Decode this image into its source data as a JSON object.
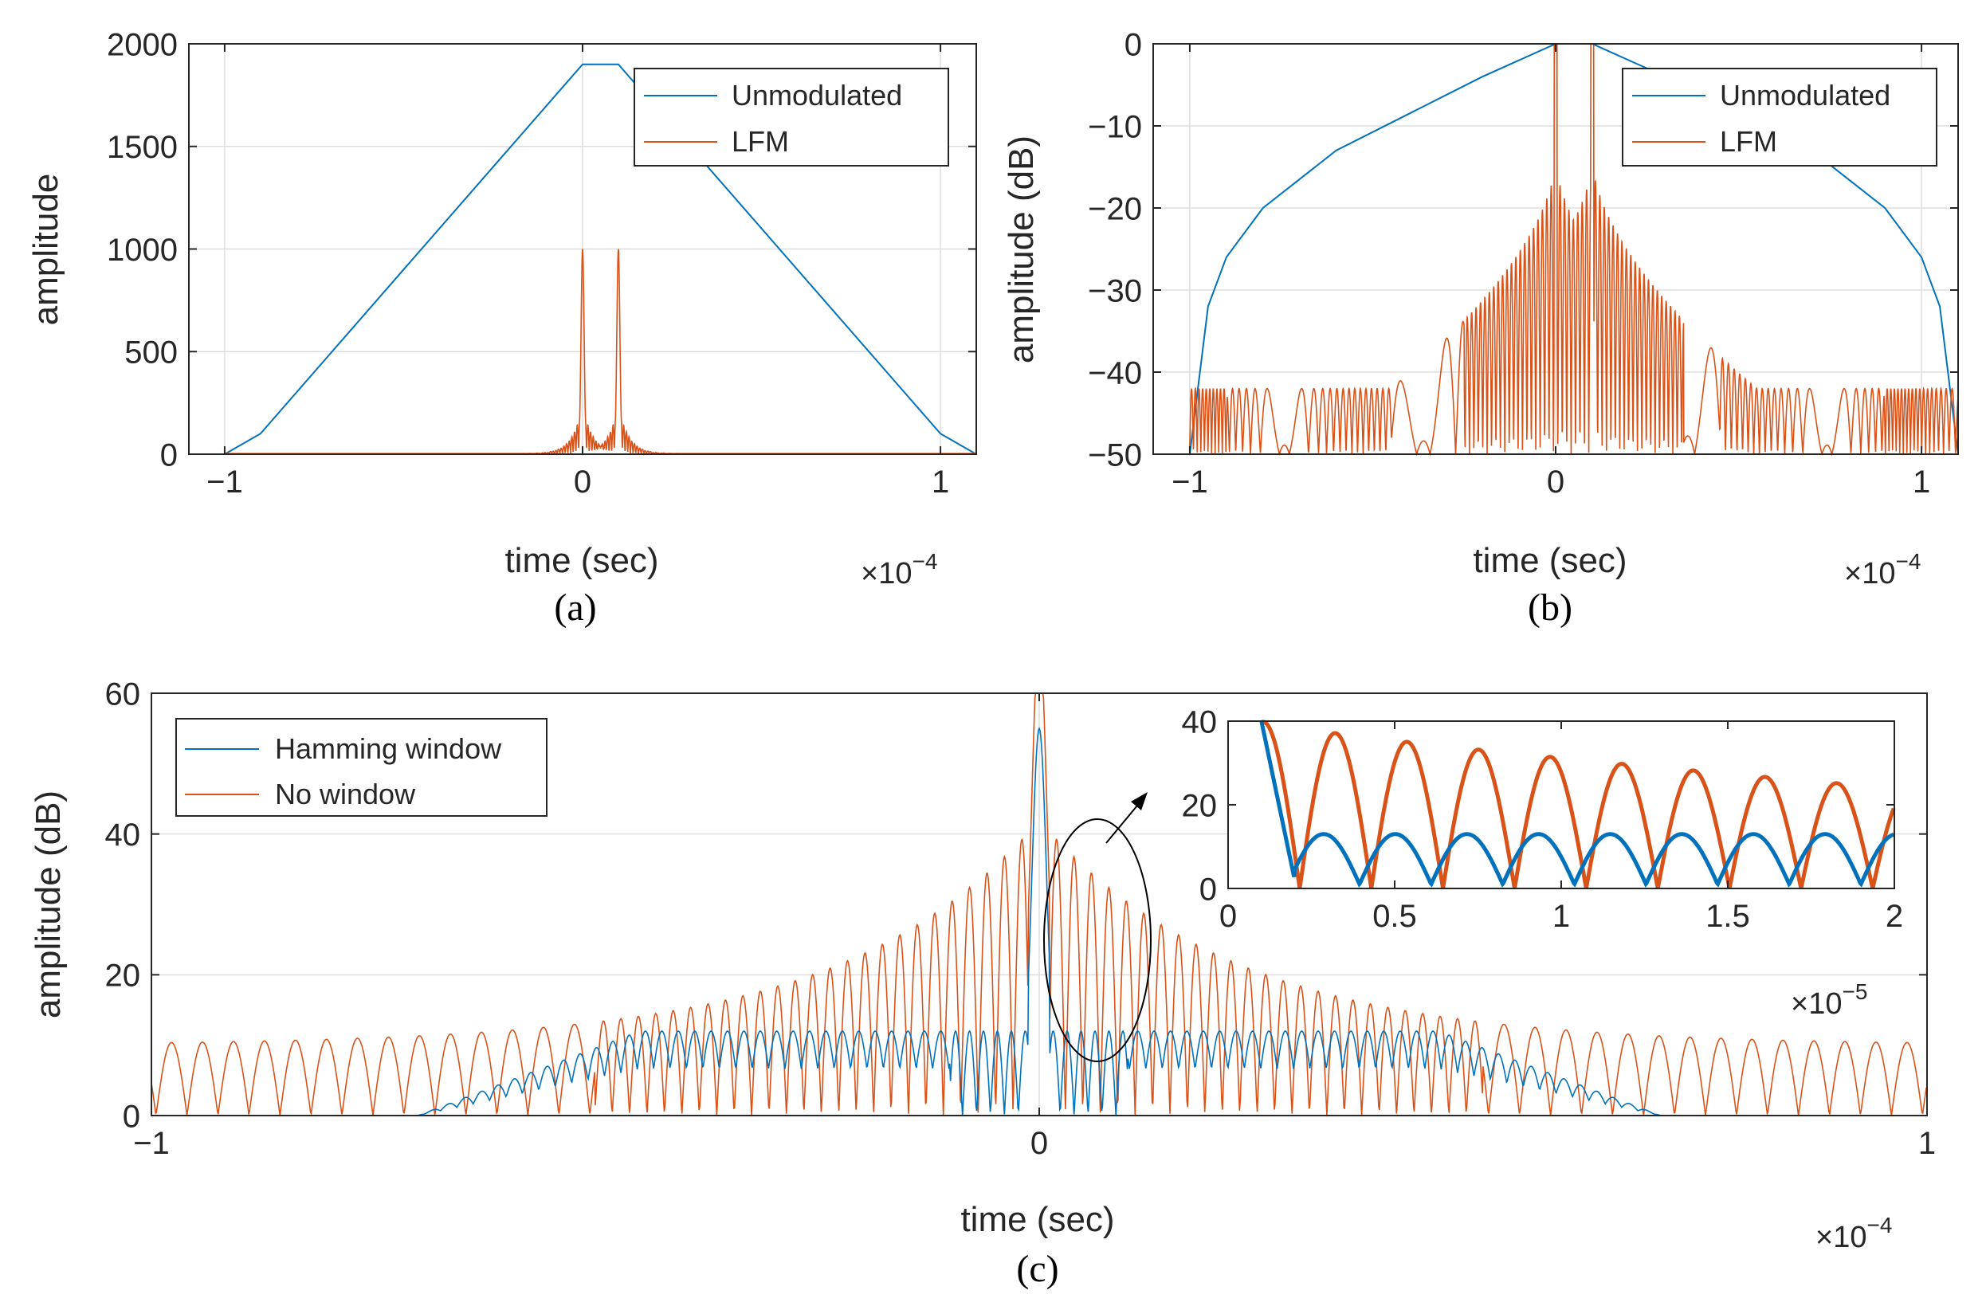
{
  "colors": {
    "blue": "#0072BD",
    "orange": "#D95319",
    "grid": "#DEDEDE",
    "axis": "#262626"
  },
  "chart_data": [
    {
      "id": "a",
      "type": "line",
      "caption": "(a)",
      "xlabel": "time (sec)",
      "ylabel": "amplitude",
      "exponent": {
        "base": "×10",
        "power": "−4"
      },
      "xlim": [
        -1.1,
        1.1
      ],
      "ylim": [
        0,
        2000
      ],
      "x_scale": 0.0001,
      "xticks": [
        -1,
        0,
        1
      ],
      "xtick_labels": [
        "−1",
        "0",
        "1"
      ],
      "yticks": [
        0,
        500,
        1000,
        1500,
        2000
      ],
      "ytick_labels": [
        "0",
        "500",
        "1000",
        "1500",
        "2000"
      ],
      "grid": true,
      "legend": {
        "placement": "top-right",
        "entries": [
          "Unmodulated",
          "LFM"
        ]
      },
      "series": [
        {
          "name": "Unmodulated",
          "color": "blue",
          "x": [
            -1.1,
            -1.0,
            -0.9,
            0.0,
            0.1,
            1.0,
            1.1
          ],
          "y": [
            0,
            0,
            100,
            1900,
            1900,
            100,
            0
          ]
        },
        {
          "name": "LFM",
          "color": "orange",
          "peaks": [
            {
              "x": 0.0,
              "y": 1000
            },
            {
              "x": 0.1,
              "y": 1000
            }
          ],
          "sidelobe_max": 240,
          "sidelobe_floor": 3,
          "x_extent": [
            -1.0,
            1.1
          ]
        }
      ]
    },
    {
      "id": "b",
      "type": "line",
      "caption": "(b)",
      "xlabel": "time (sec)",
      "ylabel": "amplitude (dB)",
      "exponent": {
        "base": "×10",
        "power": "−4"
      },
      "xlim": [
        -1.1,
        1.1
      ],
      "ylim": [
        -50,
        0
      ],
      "x_scale": 0.0001,
      "xticks": [
        -1,
        0,
        1
      ],
      "xtick_labels": [
        "−1",
        "0",
        "1"
      ],
      "yticks": [
        -50,
        -40,
        -30,
        -20,
        -10,
        0
      ],
      "ytick_labels": [
        "−50",
        "−40",
        "−30",
        "−20",
        "−10",
        "0"
      ],
      "grid": true,
      "legend": {
        "placement": "top-right",
        "entries": [
          "Unmodulated",
          "LFM"
        ]
      },
      "series": [
        {
          "name": "Unmodulated",
          "color": "blue",
          "x": [
            -1.1,
            -1.0,
            -0.95,
            -0.9,
            -0.8,
            -0.6,
            -0.4,
            -0.2,
            0.0,
            0.1,
            0.3,
            0.5,
            0.7,
            0.9,
            1.0,
            1.05,
            1.1
          ],
          "y": [
            -50,
            -50,
            -32,
            -26,
            -20,
            -13,
            -8.5,
            -4,
            0,
            0,
            -4,
            -8.5,
            -13,
            -20,
            -26,
            -32,
            -50
          ]
        },
        {
          "name": "LFM",
          "color": "orange",
          "peaks": [
            {
              "x": 0.0,
              "y": 0
            },
            {
              "x": 0.1,
              "y": 0
            }
          ],
          "sidelobe_near": -14,
          "sidelobe_far": -42,
          "x_extent": [
            -1.0,
            1.1
          ]
        }
      ]
    },
    {
      "id": "c",
      "type": "line",
      "caption": "(c)",
      "xlabel": "time (sec)",
      "ylabel": "amplitude (dB)",
      "exponent": {
        "base": "×10",
        "power": "−4"
      },
      "xlim": [
        -1,
        1
      ],
      "ylim": [
        0,
        60
      ],
      "x_scale": 0.0001,
      "xticks": [
        -1,
        0,
        1
      ],
      "xtick_labels": [
        "−1",
        "0",
        "1"
      ],
      "yticks": [
        0,
        20,
        40,
        60
      ],
      "ytick_labels": [
        "0",
        "20",
        "40",
        "60"
      ],
      "grid": true,
      "legend": {
        "placement": "top-left",
        "entries": [
          "Hamming window",
          "No window"
        ]
      },
      "series": [
        {
          "name": "Hamming window",
          "color": "blue",
          "peak": {
            "x": 0.0,
            "y": 55
          },
          "sidelobe_level": 12
        },
        {
          "name": "No window",
          "color": "orange",
          "peak": {
            "x": 0.0,
            "y": 60
          },
          "sidelobe_near": 42,
          "sidelobe_far": 10
        }
      ],
      "inset": {
        "xlim": [
          0,
          2
        ],
        "ylim": [
          0,
          40
        ],
        "x_scale": 1e-05,
        "xticks": [
          0,
          0.5,
          1,
          1.5,
          2
        ],
        "xtick_labels": [
          "0",
          "0.5",
          "1",
          "1.5",
          "2"
        ],
        "yticks": [
          0,
          20,
          40
        ],
        "ytick_labels": [
          "0",
          "20",
          "40"
        ],
        "exponent": {
          "base": "×10",
          "power": "−5"
        },
        "series": [
          {
            "name": "Hamming window",
            "color": "blue",
            "level": 12
          },
          {
            "name": "No window",
            "color": "orange",
            "level_start": 40,
            "level_end": 24
          }
        ]
      }
    }
  ]
}
